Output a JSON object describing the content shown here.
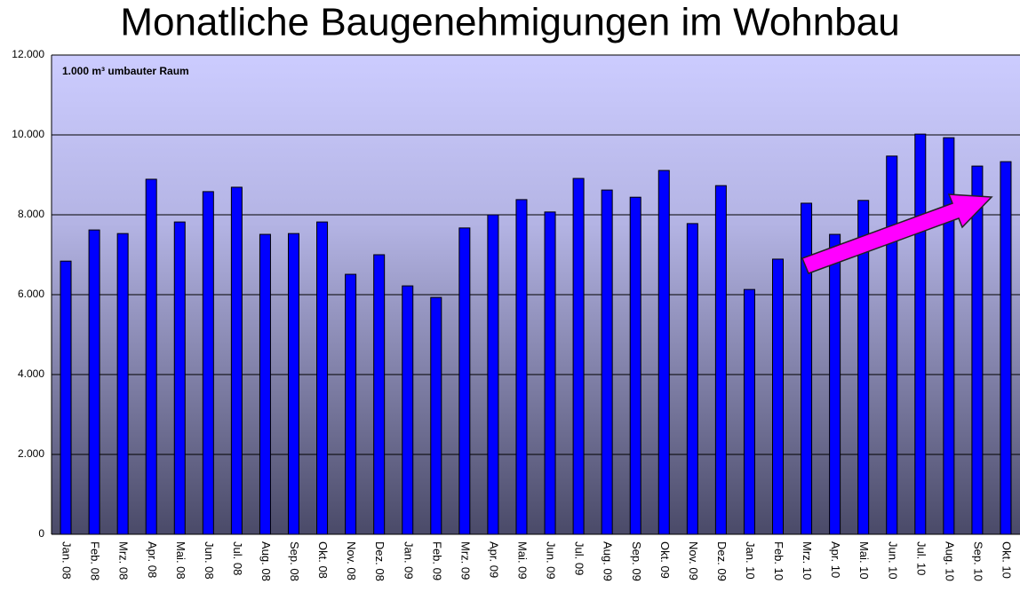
{
  "chart_data": {
    "type": "bar",
    "title": "Monatliche Baugenehmigungen im Wohnbau",
    "annotation": "1.000 m³ umbauter Raum",
    "categories": [
      "Jan. 08",
      "Feb. 08",
      "Mrz. 08",
      "Apr. 08",
      "Mai. 08",
      "Jun. 08",
      "Jul. 08",
      "Aug. 08",
      "Sep. 08",
      "Okt. 08",
      "Nov. 08",
      "Dez. 08",
      "Jan. 09",
      "Feb. 09",
      "Mrz. 09",
      "Apr. 09",
      "Mai. 09",
      "Jun. 09",
      "Jul. 09",
      "Aug. 09",
      "Sep. 09",
      "Okt. 09",
      "Nov. 09",
      "Dez. 09",
      "Jan. 10",
      "Feb. 10",
      "Mrz. 10",
      "Apr. 10",
      "Mai. 10",
      "Jun. 10",
      "Jul. 10",
      "Aug. 10",
      "Sep. 10",
      "Okt. 10"
    ],
    "values": [
      6840,
      7620,
      7530,
      8890,
      7820,
      8580,
      8690,
      7510,
      7530,
      7820,
      6510,
      7000,
      6220,
      5930,
      7670,
      8000,
      8380,
      8070,
      8910,
      8620,
      8440,
      9110,
      7780,
      8730,
      6130,
      6890,
      8290,
      7510,
      8360,
      9470,
      10020,
      9930,
      9220,
      9330
    ],
    "color": "#0000ff",
    "ylim": [
      0,
      12000
    ],
    "yticks": [
      0,
      {
        "value": 2000,
        "label": "2.000"
      },
      {
        "value": 4000,
        "label": "4.000"
      },
      {
        "value": 6000,
        "label": "6.000"
      },
      {
        "value": 8000,
        "label": "8.000"
      },
      {
        "value": 10000,
        "label": "10.000"
      },
      {
        "value": 12000,
        "label": "12.000"
      }
    ],
    "grid": true
  }
}
